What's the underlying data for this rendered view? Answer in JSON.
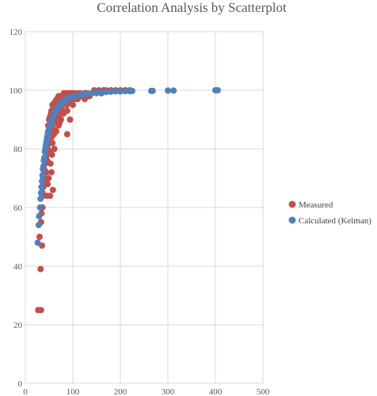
{
  "chart_data": {
    "type": "scatter",
    "title": "Correlation Analysis by Scatterplot",
    "xlabel": "",
    "ylabel": "",
    "xlim": [
      0,
      500
    ],
    "ylim": [
      0,
      120
    ],
    "x_ticks": [
      "0",
      "100",
      "200",
      "300",
      "400",
      "500"
    ],
    "y_ticks": [
      "0",
      "20",
      "40",
      "60",
      "80",
      "100",
      "120"
    ],
    "grid": "vertical and horizontal",
    "legend_position": "right",
    "series": [
      {
        "name": "Measured",
        "color": "#c0504d",
        "points": [
          [
            27,
            25
          ],
          [
            33,
            25
          ],
          [
            32,
            39
          ],
          [
            30,
            50
          ],
          [
            35,
            47
          ],
          [
            33,
            55
          ],
          [
            36,
            60
          ],
          [
            37,
            64
          ],
          [
            38,
            67
          ],
          [
            40,
            70
          ],
          [
            42,
            75
          ],
          [
            44,
            72
          ],
          [
            45,
            78
          ],
          [
            47,
            80
          ],
          [
            48,
            84
          ],
          [
            50,
            82
          ],
          [
            52,
            86
          ],
          [
            53,
            88
          ],
          [
            55,
            84
          ],
          [
            56,
            90
          ],
          [
            58,
            87
          ],
          [
            60,
            91
          ],
          [
            61,
            93
          ],
          [
            63,
            89
          ],
          [
            65,
            92
          ],
          [
            66,
            95
          ],
          [
            68,
            91
          ],
          [
            70,
            94
          ],
          [
            72,
            96
          ],
          [
            74,
            93
          ],
          [
            75,
            97
          ],
          [
            77,
            95
          ],
          [
            79,
            96
          ],
          [
            80,
            92
          ],
          [
            82,
            97
          ],
          [
            85,
            98
          ],
          [
            87,
            95
          ],
          [
            90,
            97
          ],
          [
            92,
            99
          ],
          [
            95,
            96
          ],
          [
            98,
            98
          ],
          [
            100,
            99
          ],
          [
            105,
            97
          ],
          [
            108,
            99
          ],
          [
            112,
            98
          ],
          [
            115,
            99
          ],
          [
            120,
            98
          ],
          [
            125,
            99
          ],
          [
            130,
            99
          ],
          [
            135,
            98
          ],
          [
            140,
            99
          ],
          [
            145,
            100
          ],
          [
            150,
            99
          ],
          [
            155,
            100
          ],
          [
            160,
            99
          ],
          [
            165,
            100
          ],
          [
            170,
            100
          ],
          [
            180,
            100
          ],
          [
            190,
            100
          ],
          [
            200,
            100
          ],
          [
            210,
            100
          ],
          [
            220,
            100
          ],
          [
            40,
            73
          ],
          [
            43,
            77
          ],
          [
            46,
            81
          ],
          [
            49,
            85
          ],
          [
            51,
            87
          ],
          [
            54,
            89
          ],
          [
            57,
            91
          ],
          [
            59,
            93
          ],
          [
            62,
            94
          ],
          [
            64,
            95
          ],
          [
            67,
            96
          ],
          [
            69,
            97
          ],
          [
            71,
            97
          ],
          [
            73,
            98
          ],
          [
            76,
            98
          ],
          [
            78,
            98
          ],
          [
            81,
            99
          ],
          [
            83,
            99
          ],
          [
            86,
            99
          ],
          [
            88,
            98
          ],
          [
            91,
            99
          ],
          [
            93,
            98
          ],
          [
            96,
            99
          ],
          [
            48,
            88
          ],
          [
            52,
            91
          ],
          [
            55,
            93
          ],
          [
            58,
            95
          ],
          [
            62,
            96
          ],
          [
            66,
            97
          ],
          [
            70,
            98
          ],
          [
            45,
            83
          ],
          [
            50,
            90
          ],
          [
            60,
            85
          ],
          [
            63,
            86
          ],
          [
            54,
            92
          ],
          [
            57,
            95
          ],
          [
            44,
            80
          ],
          [
            41,
            72
          ],
          [
            39,
            68
          ],
          [
            34,
            58
          ],
          [
            36,
            65
          ],
          [
            38,
            70
          ],
          [
            42,
            69
          ],
          [
            46,
            76
          ],
          [
            51,
            79
          ],
          [
            53,
            75
          ],
          [
            65,
            86
          ],
          [
            70,
            88
          ],
          [
            57,
            82
          ],
          [
            61,
            80
          ],
          [
            56,
            78
          ],
          [
            49,
            70
          ],
          [
            47,
            68
          ],
          [
            55,
            72
          ],
          [
            58,
            66
          ],
          [
            52,
            64
          ],
          [
            45,
            64
          ],
          [
            67,
            90
          ],
          [
            72,
            92
          ],
          [
            75,
            90
          ],
          [
            80,
            93
          ],
          [
            88,
            93
          ],
          [
            94,
            90
          ],
          [
            88,
            85
          ],
          [
            100,
            95
          ],
          [
            110,
            97
          ],
          [
            125,
            97
          ],
          [
            72,
            89
          ]
        ]
      },
      {
        "name": "Calculated (Kelman)",
        "color": "#4f81bd",
        "points": [
          [
            26,
            48
          ],
          [
            28,
            54
          ],
          [
            29,
            57
          ],
          [
            31,
            60
          ],
          [
            32,
            63
          ],
          [
            33,
            65
          ],
          [
            34,
            67
          ],
          [
            35,
            69
          ],
          [
            36,
            71
          ],
          [
            37,
            73
          ],
          [
            38,
            74
          ],
          [
            39,
            76
          ],
          [
            40,
            77
          ],
          [
            41,
            79
          ],
          [
            42,
            80
          ],
          [
            43,
            81
          ],
          [
            44,
            82
          ],
          [
            45,
            83
          ],
          [
            46,
            84
          ],
          [
            47,
            85
          ],
          [
            48,
            86
          ],
          [
            50,
            87
          ],
          [
            52,
            88
          ],
          [
            54,
            89
          ],
          [
            56,
            90
          ],
          [
            58,
            91
          ],
          [
            60,
            92
          ],
          [
            62,
            92.5
          ],
          [
            64,
            93
          ],
          [
            66,
            93.5
          ],
          [
            68,
            94
          ],
          [
            70,
            94.5
          ],
          [
            72,
            95
          ],
          [
            75,
            95.5
          ],
          [
            78,
            96
          ],
          [
            81,
            96.3
          ],
          [
            84,
            96.6
          ],
          [
            87,
            97
          ],
          [
            90,
            97.2
          ],
          [
            95,
            97.5
          ],
          [
            100,
            97.8
          ],
          [
            110,
            98.2
          ],
          [
            120,
            98.5
          ],
          [
            130,
            98.8
          ],
          [
            140,
            99
          ],
          [
            150,
            99.2
          ],
          [
            160,
            99.3
          ],
          [
            170,
            99.4
          ],
          [
            180,
            99.5
          ],
          [
            190,
            99.6
          ],
          [
            200,
            99.6
          ],
          [
            210,
            99.7
          ],
          [
            220,
            99.7
          ],
          [
            225,
            99.8
          ],
          [
            265,
            99.8
          ],
          [
            268,
            99.8
          ],
          [
            300,
            99.9
          ],
          [
            312,
            99.9
          ],
          [
            400,
            100
          ],
          [
            405,
            100
          ]
        ]
      }
    ]
  }
}
